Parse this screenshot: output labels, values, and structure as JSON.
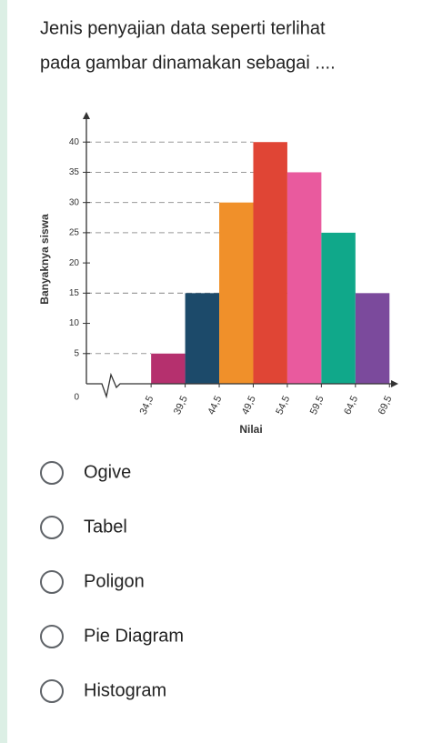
{
  "question": [
    "Jenis penyajian data seperti terlihat",
    "pada gambar dinamakan sebagai ...."
  ],
  "chart_data": {
    "type": "histogram",
    "x_label": "Nilai",
    "y_label": "Banyaknya siswa",
    "bins": [
      34.5,
      39.5,
      44.5,
      49.5,
      54.5,
      59.5,
      64.5,
      69.5
    ],
    "values": [
      5,
      15,
      30,
      40,
      35,
      25,
      15
    ],
    "colors": [
      "#b5306e",
      "#1c4a6a",
      "#f0902a",
      "#e04535",
      "#e95a9e",
      "#10a88a",
      "#7b4a9c"
    ],
    "xlim": [
      25,
      70
    ],
    "xticks": [
      {
        "value": 34.5,
        "label": "34,5"
      },
      {
        "value": 39.5,
        "label": "39,5"
      },
      {
        "value": 44.5,
        "label": "44,5"
      },
      {
        "value": 49.5,
        "label": "49,5"
      },
      {
        "value": 54.5,
        "label": "54,5"
      },
      {
        "value": 59.5,
        "label": "59,5"
      },
      {
        "value": 64.5,
        "label": "64,5"
      },
      {
        "value": 69.5,
        "label": "69,5"
      }
    ],
    "ylim": [
      0,
      45
    ],
    "yticks": [
      0,
      5,
      10,
      15,
      20,
      25,
      30,
      35,
      40
    ]
  },
  "options": [
    "Ogive",
    "Tabel",
    "Poligon",
    "Pie Diagram",
    "Histogram"
  ]
}
